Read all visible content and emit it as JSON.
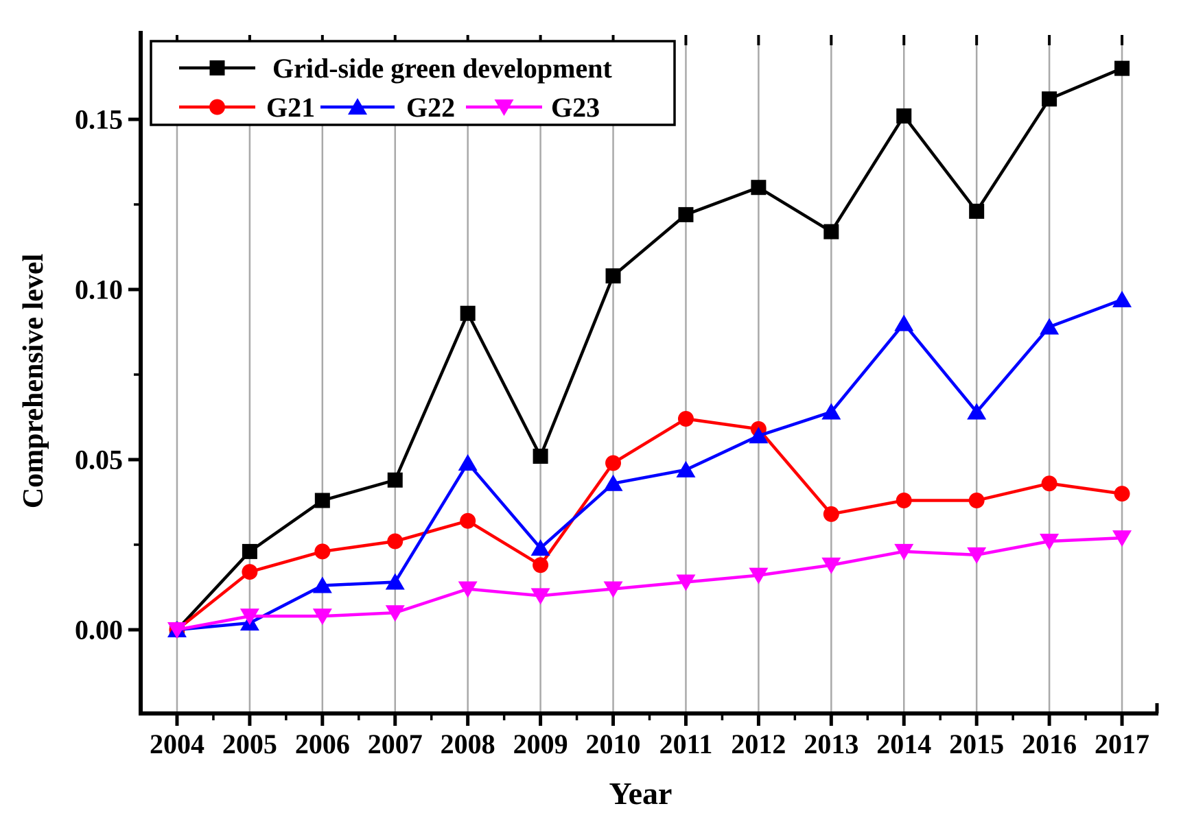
{
  "chart_data": {
    "type": "line",
    "title": "",
    "xlabel": "Year",
    "ylabel": "Comprehensive level",
    "x": [
      2004,
      2005,
      2006,
      2007,
      2008,
      2009,
      2010,
      2011,
      2012,
      2013,
      2014,
      2015,
      2016,
      2017
    ],
    "xlim": [
      2003.5,
      2017.5
    ],
    "ylim": [
      -0.0246,
      0.1744
    ],
    "y_major_ticks": [
      0.0,
      0.05,
      0.1,
      0.15
    ],
    "y_major_tick_labels": [
      "0.00",
      "0.05",
      "0.10",
      "0.15"
    ],
    "y_minor_ticks": [
      0.025,
      0.075,
      0.125
    ],
    "x_tick_labels": [
      "2004",
      "2005",
      "2006",
      "2007",
      "2008",
      "2009",
      "2010",
      "2011",
      "2012",
      "2013",
      "2014",
      "2015",
      "2016",
      "2017"
    ],
    "grid": "vertical-only",
    "gridline_color": "#A9A9A9",
    "legend_position": "top-left-inside",
    "series": [
      {
        "name": "Grid-side green development",
        "color": "#000000",
        "marker": "square",
        "values": [
          0.0,
          0.023,
          0.038,
          0.044,
          0.093,
          0.051,
          0.104,
          0.122,
          0.13,
          0.117,
          0.151,
          0.123,
          0.156,
          0.165
        ]
      },
      {
        "name": "G21",
        "color": "#FF0000",
        "marker": "circle",
        "values": [
          0.0,
          0.017,
          0.023,
          0.026,
          0.032,
          0.019,
          0.049,
          0.062,
          0.059,
          0.034,
          0.038,
          0.038,
          0.043,
          0.04
        ]
      },
      {
        "name": "G22",
        "color": "#0000FF",
        "marker": "triangle-up",
        "values": [
          0.0,
          0.002,
          0.013,
          0.014,
          0.049,
          0.024,
          0.043,
          0.047,
          0.057,
          0.064,
          0.09,
          0.064,
          0.089,
          0.097
        ]
      },
      {
        "name": "G23",
        "color": "#FF00FF",
        "marker": "triangle-down",
        "values": [
          0.0,
          0.004,
          0.004,
          0.005,
          0.012,
          0.01,
          0.012,
          0.014,
          0.016,
          0.019,
          0.023,
          0.022,
          0.026,
          0.027
        ]
      }
    ]
  }
}
